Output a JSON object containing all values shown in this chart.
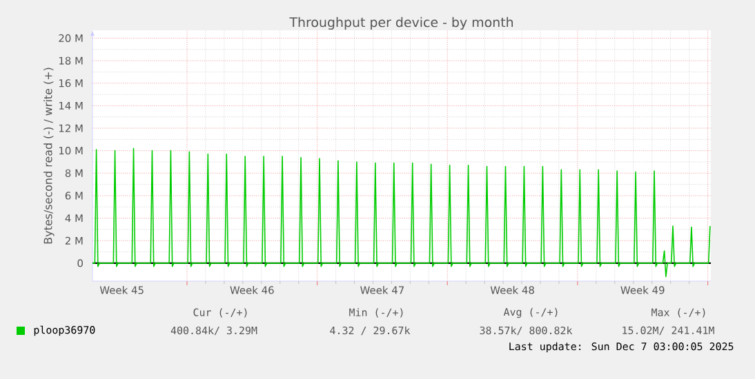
{
  "chart_data": {
    "type": "line",
    "title": "Throughput per device - by month",
    "ylabel": "Bytes/second read (-) / write (+)",
    "xlim": [
      "2025-11-03T22:00",
      "2025-12-07T04:00"
    ],
    "ylim": [
      -1.6,
      20.7
    ],
    "xticks": [
      {
        "value": "2025-11-05T12:00",
        "label": "Week 45"
      },
      {
        "value": "2025-11-09",
        "label": null
      },
      {
        "value": "2025-11-12T12:00",
        "label": "Week 46"
      },
      {
        "value": "2025-11-16",
        "label": null
      },
      {
        "value": "2025-11-19T12:00",
        "label": "Week 47"
      },
      {
        "value": "2025-11-23",
        "label": null
      },
      {
        "value": "2025-11-26T12:00",
        "label": "Week 48"
      },
      {
        "value": "2025-11-30",
        "label": null
      },
      {
        "value": "2025-12-03T12:00",
        "label": "Week 49"
      },
      {
        "value": "2025-12-07",
        "label": null
      }
    ],
    "yticks": [
      0,
      {
        "value": 2,
        "label": "2 M"
      },
      {
        "value": 4,
        "label": "4 M"
      },
      {
        "value": 6,
        "label": "6 M"
      },
      {
        "value": 8,
        "label": "8 M"
      },
      {
        "value": 10,
        "label": "10 M"
      },
      {
        "value": 12,
        "label": "12 M"
      },
      {
        "value": 14,
        "label": "14 M"
      },
      {
        "value": 16,
        "label": "16 M"
      },
      {
        "value": 18,
        "label": "18 M"
      },
      {
        "value": 20,
        "label": "20 M"
      }
    ],
    "grid": true,
    "legend": "bottom",
    "ref_lines": [
      {
        "axis": "y",
        "value": 0,
        "color": "#000000"
      }
    ],
    "annotations": [
      "Cur (-/+)",
      "Min (-/+)",
      "Avg (-/+)",
      "Max (-/+)",
      "400.84k/ 3.29M",
      "4.32 / 29.67k",
      "38.57k/ 800.82k",
      "15.02M/ 241.41M",
      "Last update: Sun Dec 7 03:00:05 2025"
    ],
    "series": [
      {
        "name": "ploop36970",
        "color": "#00cc00",
        "x": [
          "2025-11-03T22:00",
          "2025-11-04T01:00",
          "2025-11-04T03:00",
          "2025-11-04T05:00",
          "2025-11-04T07:00",
          "2025-11-05T01:00",
          "2025-11-05T03:00",
          "2025-11-05T05:00",
          "2025-11-05T07:00",
          "2025-11-06T01:00",
          "2025-11-06T03:00",
          "2025-11-06T05:00",
          "2025-11-06T07:00",
          "2025-11-07T01:00",
          "2025-11-07T03:00",
          "2025-11-07T05:00",
          "2025-11-07T07:00",
          "2025-11-08T01:00",
          "2025-11-08T03:00",
          "2025-11-08T05:00",
          "2025-11-08T07:00",
          "2025-11-09T01:00",
          "2025-11-09T03:00",
          "2025-11-09T05:00",
          "2025-11-09T07:00",
          "2025-11-10T01:00",
          "2025-11-10T03:00",
          "2025-11-10T05:00",
          "2025-11-10T07:00",
          "2025-11-11T01:00",
          "2025-11-11T03:00",
          "2025-11-11T05:00",
          "2025-11-11T07:00",
          "2025-11-12T01:00",
          "2025-11-12T03:00",
          "2025-11-12T05:00",
          "2025-11-12T07:00",
          "2025-11-13T01:00",
          "2025-11-13T03:00",
          "2025-11-13T05:00",
          "2025-11-13T07:00",
          "2025-11-14T01:00",
          "2025-11-14T03:00",
          "2025-11-14T05:00",
          "2025-11-14T07:00",
          "2025-11-15T01:00",
          "2025-11-15T03:00",
          "2025-11-15T05:00",
          "2025-11-15T07:00",
          "2025-11-16T01:00",
          "2025-11-16T03:00",
          "2025-11-16T05:00",
          "2025-11-16T07:00",
          "2025-11-17T01:00",
          "2025-11-17T03:00",
          "2025-11-17T05:00",
          "2025-11-17T07:00",
          "2025-11-18T01:00",
          "2025-11-18T03:00",
          "2025-11-18T05:00",
          "2025-11-18T07:00",
          "2025-11-19T01:00",
          "2025-11-19T03:00",
          "2025-11-19T05:00",
          "2025-11-19T07:00",
          "2025-11-20T01:00",
          "2025-11-20T03:00",
          "2025-11-20T05:00",
          "2025-11-20T07:00",
          "2025-11-21T01:00",
          "2025-11-21T03:00",
          "2025-11-21T05:00",
          "2025-11-21T07:00",
          "2025-11-22T01:00",
          "2025-11-22T03:00",
          "2025-11-22T05:00",
          "2025-11-22T07:00",
          "2025-11-23T01:00",
          "2025-11-23T03:00",
          "2025-11-23T05:00",
          "2025-11-23T07:00",
          "2025-11-24T01:00",
          "2025-11-24T03:00",
          "2025-11-24T05:00",
          "2025-11-24T07:00",
          "2025-11-25T01:00",
          "2025-11-25T03:00",
          "2025-11-25T05:00",
          "2025-11-25T07:00",
          "2025-11-26T01:00",
          "2025-11-26T03:00",
          "2025-11-26T05:00",
          "2025-11-26T07:00",
          "2025-11-27T01:00",
          "2025-11-27T03:00",
          "2025-11-27T05:00",
          "2025-11-27T07:00",
          "2025-11-28T01:00",
          "2025-11-28T03:00",
          "2025-11-28T05:00",
          "2025-11-28T07:00",
          "2025-11-29T01:00",
          "2025-11-29T03:00",
          "2025-11-29T05:00",
          "2025-11-29T07:00",
          "2025-11-30T01:00",
          "2025-11-30T03:00",
          "2025-11-30T05:00",
          "2025-11-30T07:00",
          "2025-12-01T01:00",
          "2025-12-01T03:00",
          "2025-12-01T05:00",
          "2025-12-01T07:00",
          "2025-12-02T01:00",
          "2025-12-02T03:00",
          "2025-12-02T05:00",
          "2025-12-02T07:00",
          "2025-12-03T01:00",
          "2025-12-03T03:00",
          "2025-12-03T05:00",
          "2025-12-03T07:00",
          "2025-12-04T01:00",
          "2025-12-04T03:00",
          "2025-12-04T05:00",
          "2025-12-04T07:00",
          "2025-12-04T14:00",
          "2025-12-04T16:00",
          "2025-12-04T18:00",
          "2025-12-04T20:00",
          "2025-12-05T01:00",
          "2025-12-05T03:00",
          "2025-12-05T05:00",
          "2025-12-05T07:00",
          "2025-12-06T01:00",
          "2025-12-06T03:00",
          "2025-12-06T05:00",
          "2025-12-06T07:00",
          "2025-12-07T01:00",
          "2025-12-07T03:00"
        ],
        "values": [
          0,
          0,
          10.1,
          -0.3,
          0,
          0,
          10.0,
          -0.3,
          0,
          0,
          10.2,
          -0.3,
          0,
          0,
          10.0,
          -0.3,
          0,
          0,
          10.0,
          -0.3,
          0,
          0,
          9.9,
          -0.3,
          0,
          0,
          9.7,
          -0.3,
          0,
          0,
          9.7,
          -0.3,
          0,
          0,
          9.5,
          -0.3,
          0,
          0,
          9.5,
          -0.3,
          0,
          0,
          9.5,
          -0.3,
          0,
          0,
          9.4,
          -0.3,
          0,
          0,
          9.3,
          -0.3,
          0,
          0,
          9.1,
          -0.3,
          0,
          0,
          9.0,
          -0.3,
          0,
          0,
          8.9,
          -0.3,
          0,
          0,
          8.9,
          -0.3,
          0,
          0,
          8.9,
          -0.3,
          0,
          0,
          8.8,
          -0.3,
          0,
          0,
          8.7,
          -0.3,
          0,
          0,
          8.7,
          -0.3,
          0,
          0,
          8.6,
          -0.3,
          0,
          0,
          8.6,
          -0.3,
          0,
          0,
          8.6,
          -0.3,
          0,
          0,
          8.6,
          -0.3,
          0,
          0,
          8.3,
          -0.3,
          0,
          0,
          8.3,
          -0.3,
          0,
          0,
          8.3,
          -0.3,
          0,
          0,
          8.2,
          -0.3,
          0,
          0,
          8.1,
          -0.3,
          0,
          0,
          8.2,
          -0.3,
          0,
          0,
          1.1,
          -1.2,
          0,
          0,
          3.3,
          -0.3,
          0,
          0,
          3.2,
          -0.3,
          0,
          0,
          3.3
        ]
      }
    ]
  }
}
